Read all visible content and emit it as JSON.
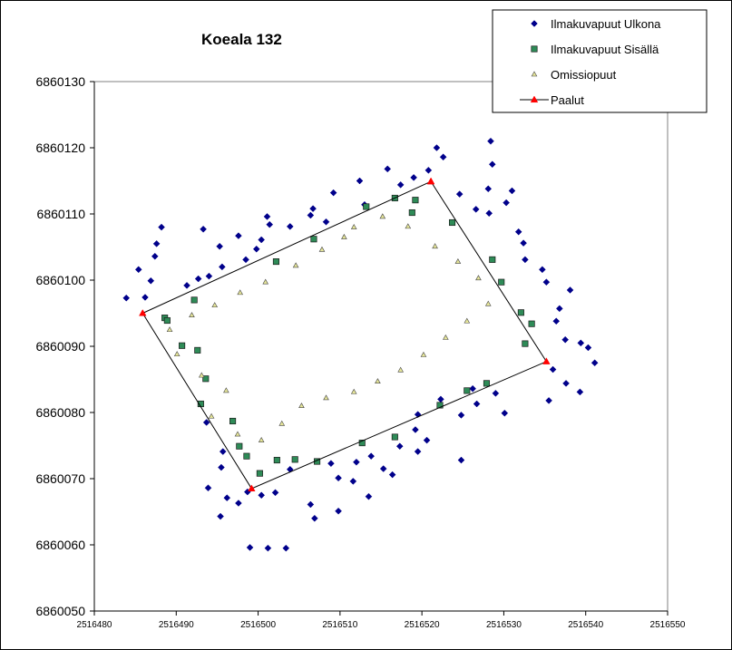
{
  "chart_data": {
    "type": "scatter",
    "title": "Koeala 132",
    "xlim": [
      2516480,
      2516550
    ],
    "ylim": [
      6860050,
      6860130
    ],
    "x_ticks": [
      2516480,
      2516490,
      2516500,
      2516510,
      2516520,
      2516530,
      2516540,
      2516550
    ],
    "y_ticks": [
      6860050,
      6860060,
      6860070,
      6860080,
      6860090,
      6860100,
      6860110,
      6860120,
      6860130
    ],
    "grid": false,
    "legend_position": "top-right",
    "series": [
      {
        "name": "Ilmakuvapuut Ulkona",
        "marker": "diamond",
        "color": "#00008b",
        "points": [
          [
            2516521.8,
            6860120
          ],
          [
            2516522.6,
            6860118.6
          ],
          [
            2516528.4,
            6860121
          ],
          [
            2516528.6,
            6860117.5
          ],
          [
            2516520.8,
            6860116.6
          ],
          [
            2516515.8,
            6860116.8
          ],
          [
            2516512.4,
            6860115
          ],
          [
            2516509.2,
            6860113.2
          ],
          [
            2516506.7,
            6860110.8
          ],
          [
            2516503.9,
            6860108.1
          ],
          [
            2516501.1,
            6860109.6
          ],
          [
            2516501.4,
            6860108.4
          ],
          [
            2516499.8,
            6860104.7
          ],
          [
            2516500.4,
            6860106.1
          ],
          [
            2516498.5,
            6860103.1
          ],
          [
            2516497.6,
            6860106.7
          ],
          [
            2516495.3,
            6860105.1
          ],
          [
            2516493.3,
            6860107.7
          ],
          [
            2516492.7,
            6860100.2
          ],
          [
            2516495.6,
            6860102
          ],
          [
            2516494,
            6860100.6
          ],
          [
            2516491.3,
            6860099.2
          ],
          [
            2516488.2,
            6860108
          ],
          [
            2516487.6,
            6860105.5
          ],
          [
            2516487.4,
            6860103.6
          ],
          [
            2516486.9,
            6860099.9
          ],
          [
            2516486.2,
            6860097.4
          ],
          [
            2516485.4,
            6860101.6
          ],
          [
            2516483.9,
            6860097.3
          ],
          [
            2516506.4,
            6860109.8
          ],
          [
            2516508.3,
            6860108.8
          ],
          [
            2516513,
            6860111.4
          ],
          [
            2516517.4,
            6860114.4
          ],
          [
            2516519,
            6860115.5
          ],
          [
            2516524.6,
            6860113
          ],
          [
            2516526.6,
            6860110.7
          ],
          [
            2516528.2,
            6860110.1
          ],
          [
            2516528.1,
            6860113.8
          ],
          [
            2516531,
            6860113.5
          ],
          [
            2516530.3,
            6860111.7
          ],
          [
            2516531.8,
            6860107.3
          ],
          [
            2516532.6,
            6860103.1
          ],
          [
            2516532.4,
            6860105.6
          ],
          [
            2516534.7,
            6860101.6
          ],
          [
            2516536.8,
            6860095.7
          ],
          [
            2516538.1,
            6860098.5
          ],
          [
            2516536.4,
            6860093.8
          ],
          [
            2516537.5,
            6860091
          ],
          [
            2516539.4,
            6860090.5
          ],
          [
            2516540.3,
            6860089.8
          ],
          [
            2516541.1,
            6860087.5
          ],
          [
            2516537.6,
            6860084.4
          ],
          [
            2516539.3,
            6860083.1
          ],
          [
            2516535.5,
            6860081.8
          ],
          [
            2516530.1,
            6860079.9
          ],
          [
            2516526.7,
            6860081.3
          ],
          [
            2516524.8,
            6860079.6
          ],
          [
            2516526.2,
            6860083.6
          ],
          [
            2516529,
            6860082.9
          ],
          [
            2516522.3,
            6860082
          ],
          [
            2516519.5,
            6860079.7
          ],
          [
            2516520.6,
            6860075.8
          ],
          [
            2516519.5,
            6860074.1
          ],
          [
            2516517.3,
            6860074.9
          ],
          [
            2516515.3,
            6860071.5
          ],
          [
            2516513.8,
            6860073.4
          ],
          [
            2516512,
            6860072.5
          ],
          [
            2516513.5,
            6860067.3
          ],
          [
            2516511.6,
            6860069.6
          ],
          [
            2516509.8,
            6860070.1
          ],
          [
            2516509.8,
            6860065.1
          ],
          [
            2516506.9,
            6860064
          ],
          [
            2516506.4,
            6860066.1
          ],
          [
            2516503.9,
            6860071.4
          ],
          [
            2516502.1,
            6860067.9
          ],
          [
            2516500.4,
            6860067.5
          ],
          [
            2516498.7,
            6860068
          ],
          [
            2516497.6,
            6860066.3
          ],
          [
            2516496.2,
            6860067.1
          ],
          [
            2516495.4,
            6860064.3
          ],
          [
            2516493.9,
            6860068.6
          ],
          [
            2516495.5,
            6860071.7
          ],
          [
            2516495.7,
            6860074.1
          ],
          [
            2516493.7,
            6860078.5
          ],
          [
            2516499,
            6860059.6
          ],
          [
            2516501.2,
            6860059.5
          ],
          [
            2516503.4,
            6860059.5
          ],
          [
            2516524.8,
            6860072.8
          ],
          [
            2516536,
            6860086.5
          ],
          [
            2516535.2,
            6860099.7
          ],
          [
            2516516.4,
            6860070.6
          ],
          [
            2516519.2,
            6860077.4
          ],
          [
            2516508.9,
            6860072.3
          ]
        ]
      },
      {
        "name": "Ilmakuvapuut Sisällä",
        "marker": "square",
        "color": "#2e8b57",
        "points": [
          [
            2516519.2,
            6860112.1
          ],
          [
            2516516.7,
            6860112.4
          ],
          [
            2516513.2,
            6860111.1
          ],
          [
            2516506.8,
            6860106.2
          ],
          [
            2516502.2,
            6860102.8
          ],
          [
            2516492.2,
            6860097
          ],
          [
            2516488.6,
            6860094.3
          ],
          [
            2516488.9,
            6860093.9
          ],
          [
            2516490.7,
            6860090.1
          ],
          [
            2516492.6,
            6860089.4
          ],
          [
            2516493.6,
            6860085.1
          ],
          [
            2516493,
            6860081.3
          ],
          [
            2516496.9,
            6860078.7
          ],
          [
            2516497.7,
            6860074.9
          ],
          [
            2516498.6,
            6860073.4
          ],
          [
            2516500.2,
            6860070.8
          ],
          [
            2516502.3,
            6860072.8
          ],
          [
            2516504.5,
            6860072.9
          ],
          [
            2516507.2,
            6860072.6
          ],
          [
            2516512.7,
            6860075.4
          ],
          [
            2516516.7,
            6860076.3
          ],
          [
            2516522.2,
            6860081.1
          ],
          [
            2516525.5,
            6860083.3
          ],
          [
            2516527.9,
            6860084.4
          ],
          [
            2516532.6,
            6860090.4
          ],
          [
            2516533.4,
            6860093.4
          ],
          [
            2516532.1,
            6860095.1
          ],
          [
            2516529.7,
            6860099.7
          ],
          [
            2516528.6,
            6860103.1
          ],
          [
            2516523.7,
            6860108.7
          ],
          [
            2516518.8,
            6860110.2
          ]
        ]
      },
      {
        "name": "Omissiopuut",
        "marker": "triangle",
        "color": "#e6e699",
        "points": [
          [
            2516511.7,
            6860108
          ],
          [
            2516510.5,
            6860106.5
          ],
          [
            2516507.8,
            6860104.6
          ],
          [
            2516504.6,
            6860102.2
          ],
          [
            2516500.9,
            6860099.7
          ],
          [
            2516497.8,
            6860098.1
          ],
          [
            2516494.7,
            6860096.2
          ],
          [
            2516491.9,
            6860094.7
          ],
          [
            2516489.2,
            6860092.5
          ],
          [
            2516490.1,
            6860088.8
          ],
          [
            2516493.1,
            6860085.6
          ],
          [
            2516496.1,
            6860083.3
          ],
          [
            2516494.3,
            6860079.4
          ],
          [
            2516497.5,
            6860076.7
          ],
          [
            2516500.4,
            6860075.8
          ],
          [
            2516502.9,
            6860078.3
          ],
          [
            2516505.3,
            6860081
          ],
          [
            2516508.3,
            6860082.2
          ],
          [
            2516511.7,
            6860083.1
          ],
          [
            2516514.6,
            6860084.7
          ],
          [
            2516517.4,
            6860086.4
          ],
          [
            2516520.2,
            6860088.7
          ],
          [
            2516522.9,
            6860091.3
          ],
          [
            2516525.5,
            6860093.8
          ],
          [
            2516528.1,
            6860096.4
          ],
          [
            2516526.9,
            6860100.3
          ],
          [
            2516524.4,
            6860102.8
          ],
          [
            2516521.6,
            6860105.1
          ],
          [
            2516518.3,
            6860108.1
          ],
          [
            2516515.2,
            6860109.6
          ]
        ]
      },
      {
        "name": "Paalut",
        "marker": "triangle-line",
        "color": "#ff0000",
        "points": [
          [
            2516521.1,
            6860114.9
          ],
          [
            2516535.2,
            6860087.7
          ],
          [
            2516499.2,
            6860068.5
          ],
          [
            2516485.9,
            6860095
          ],
          [
            2516521.1,
            6860114.9
          ]
        ]
      }
    ]
  },
  "colors": {
    "background": "#ffffff",
    "axis": "#000000",
    "line": "#000000"
  }
}
